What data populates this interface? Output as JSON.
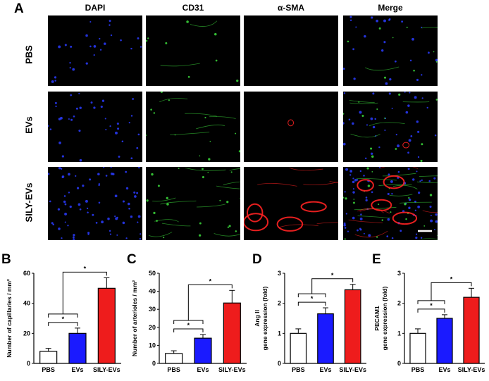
{
  "figure": {
    "panel_a_letter": "A",
    "columns": [
      "DAPI",
      "CD31",
      "α-SMA",
      "Merge"
    ],
    "rows": [
      "PBS",
      "EVs",
      "SILY-EVs"
    ]
  },
  "colors": {
    "pbs": "#ffffff",
    "evs": "#1a1aff",
    "sily": "#ee1c1c",
    "dapi": "#2a3cff",
    "cd31": "#3cdc3c",
    "asma": "#ff2222"
  },
  "chart_data": [
    {
      "panel": "B",
      "type": "bar",
      "categories": [
        "PBS",
        "EVs",
        "SILY-EVs"
      ],
      "values": [
        8,
        20,
        50
      ],
      "errors": [
        2,
        3.5,
        7
      ],
      "ylabel": "Number of capillaries / mm²",
      "ylim": [
        0,
        60
      ],
      "yticks": [
        "0",
        "20",
        "40",
        "60"
      ],
      "sig": [
        "*",
        "*"
      ]
    },
    {
      "panel": "C",
      "type": "bar",
      "categories": [
        "PBS",
        "EVs",
        "SILY-EVs"
      ],
      "values": [
        5.5,
        14,
        33.5
      ],
      "errors": [
        1.5,
        2,
        7
      ],
      "ylabel": "Number of arterioles / mm²",
      "ylim": [
        0,
        50
      ],
      "yticks": [
        "0",
        "10",
        "20",
        "30",
        "40",
        "50"
      ],
      "sig": [
        "*",
        "*"
      ]
    },
    {
      "panel": "D",
      "type": "bar",
      "categories": [
        "PBS",
        "EVs",
        "SILY-EVs"
      ],
      "values": [
        1.0,
        1.65,
        2.45
      ],
      "errors": [
        0.15,
        0.2,
        0.18
      ],
      "ylabel": "Ang II\ngene expression (fold)",
      "ylim": [
        0,
        3
      ],
      "yticks": [
        "0",
        "1",
        "2",
        "3"
      ],
      "sig": [
        "*",
        "*"
      ]
    },
    {
      "panel": "E",
      "type": "bar",
      "categories": [
        "PBS",
        "EVs",
        "SILY-EVs"
      ],
      "values": [
        1.0,
        1.5,
        2.2
      ],
      "errors": [
        0.15,
        0.12,
        0.3
      ],
      "ylabel": "PECAM1\ngene expression (fold)",
      "ylim": [
        0,
        3
      ],
      "yticks": [
        "0",
        "1",
        "2",
        "3"
      ],
      "sig": [
        "*",
        "*"
      ]
    }
  ]
}
